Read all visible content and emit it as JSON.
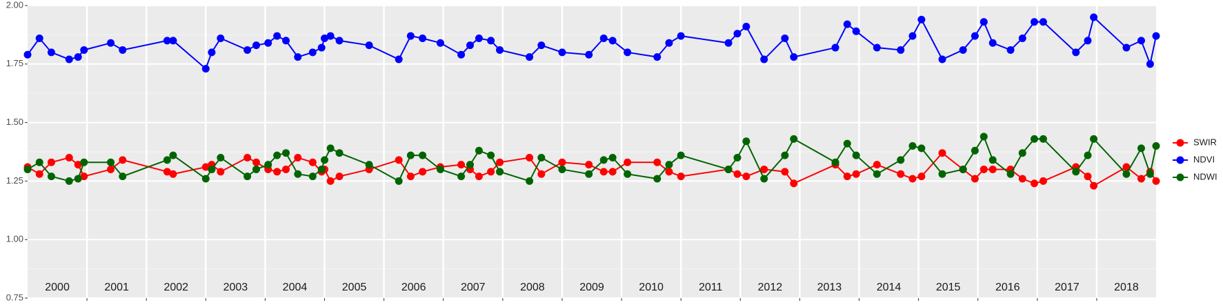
{
  "chart_data": {
    "type": "line",
    "x": [
      2000.0,
      2000.2,
      2000.4,
      2000.7,
      2000.85,
      2000.95,
      2001.4,
      2001.6,
      2002.35,
      2002.45,
      2003.0,
      2003.1,
      2003.25,
      2003.7,
      2003.85,
      2004.05,
      2004.2,
      2004.35,
      2004.55,
      2004.8,
      2004.95,
      2005.0,
      2005.1,
      2005.25,
      2005.75,
      2006.25,
      2006.45,
      2006.65,
      2006.95,
      2007.3,
      2007.45,
      2007.6,
      2007.8,
      2007.95,
      2008.45,
      2008.65,
      2009.0,
      2009.45,
      2009.7,
      2009.85,
      2010.1,
      2010.6,
      2010.8,
      2011.0,
      2011.8,
      2011.95,
      2012.1,
      2012.4,
      2012.75,
      2012.9,
      2013.6,
      2013.8,
      2013.95,
      2014.3,
      2014.7,
      2014.9,
      2015.05,
      2015.4,
      2015.75,
      2015.95,
      2016.1,
      2016.25,
      2016.55,
      2016.75,
      2016.95,
      2017.1,
      2017.65,
      2017.85,
      2017.95,
      2018.5,
      2018.75,
      2018.9,
      2019.0
    ],
    "series": [
      {
        "name": "SWIR",
        "color": "#ff0000",
        "values": [
          1.31,
          1.28,
          1.33,
          1.35,
          1.32,
          1.27,
          1.3,
          1.34,
          1.29,
          1.28,
          1.31,
          1.32,
          1.29,
          1.35,
          1.33,
          1.3,
          1.29,
          1.3,
          1.35,
          1.33,
          1.29,
          1.3,
          1.25,
          1.27,
          1.3,
          1.34,
          1.27,
          1.29,
          1.31,
          1.32,
          1.3,
          1.27,
          1.29,
          1.33,
          1.35,
          1.28,
          1.33,
          1.32,
          1.29,
          1.29,
          1.33,
          1.33,
          1.29,
          1.27,
          1.3,
          1.28,
          1.27,
          1.3,
          1.29,
          1.24,
          1.32,
          1.27,
          1.28,
          1.32,
          1.28,
          1.26,
          1.27,
          1.37,
          1.3,
          1.26,
          1.3,
          1.3,
          1.3,
          1.26,
          1.24,
          1.25,
          1.31,
          1.27,
          1.23,
          1.31,
          1.26,
          1.29,
          1.25
        ]
      },
      {
        "name": "NDVI",
        "color": "#0000ff",
        "values": [
          1.79,
          1.86,
          1.8,
          1.77,
          1.78,
          1.81,
          1.84,
          1.81,
          1.85,
          1.85,
          1.73,
          1.8,
          1.86,
          1.81,
          1.83,
          1.84,
          1.87,
          1.85,
          1.78,
          1.8,
          1.82,
          1.86,
          1.87,
          1.85,
          1.83,
          1.77,
          1.87,
          1.86,
          1.84,
          1.79,
          1.83,
          1.86,
          1.85,
          1.81,
          1.78,
          1.83,
          1.8,
          1.79,
          1.86,
          1.85,
          1.8,
          1.78,
          1.84,
          1.87,
          1.84,
          1.88,
          1.91,
          1.77,
          1.86,
          1.78,
          1.82,
          1.92,
          1.89,
          1.82,
          1.81,
          1.87,
          1.94,
          1.77,
          1.81,
          1.87,
          1.93,
          1.84,
          1.81,
          1.86,
          1.93,
          1.93,
          1.8,
          1.85,
          1.95,
          1.82,
          1.85,
          1.75,
          1.87
        ]
      },
      {
        "name": "NDWI",
        "color": "#006400",
        "values": [
          1.3,
          1.33,
          1.27,
          1.25,
          1.26,
          1.33,
          1.33,
          1.27,
          1.34,
          1.36,
          1.26,
          1.3,
          1.35,
          1.27,
          1.3,
          1.32,
          1.36,
          1.37,
          1.28,
          1.27,
          1.3,
          1.34,
          1.39,
          1.37,
          1.32,
          1.25,
          1.36,
          1.36,
          1.3,
          1.27,
          1.32,
          1.38,
          1.36,
          1.29,
          1.25,
          1.35,
          1.3,
          1.28,
          1.34,
          1.35,
          1.28,
          1.26,
          1.32,
          1.36,
          1.3,
          1.35,
          1.42,
          1.26,
          1.36,
          1.43,
          1.33,
          1.41,
          1.36,
          1.28,
          1.34,
          1.4,
          1.39,
          1.28,
          1.3,
          1.38,
          1.44,
          1.34,
          1.28,
          1.37,
          1.43,
          1.43,
          1.29,
          1.36,
          1.43,
          1.28,
          1.39,
          1.28,
          1.4
        ]
      }
    ],
    "xlim": [
      2000,
      2019
    ],
    "xticks": [
      2000,
      2001,
      2002,
      2003,
      2004,
      2005,
      2006,
      2007,
      2008,
      2009,
      2010,
      2011,
      2012,
      2013,
      2014,
      2015,
      2016,
      2017,
      2018
    ],
    "ylim": [
      0.75,
      2.0
    ],
    "yticks": [
      0.75,
      {
        "value": 1.0,
        "label": "1.00"
      },
      1.25,
      {
        "value": 1.5,
        "label": "1.50"
      },
      1.75,
      {
        "value": 2.0,
        "label": "2.00"
      }
    ],
    "grid": true,
    "legend": "right"
  }
}
